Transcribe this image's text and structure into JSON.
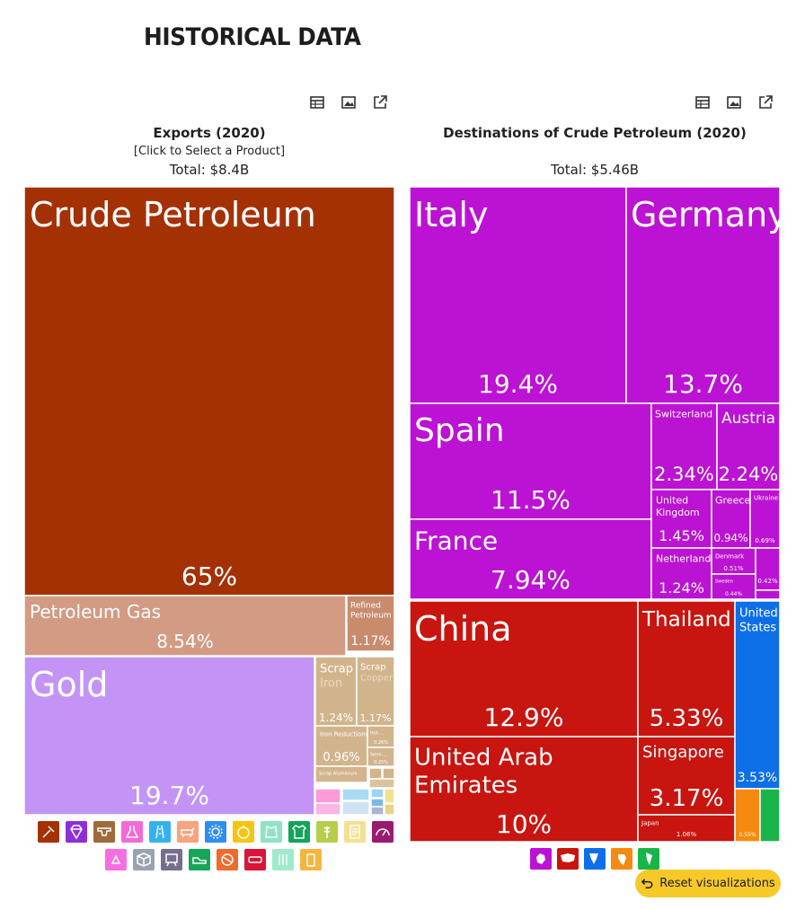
{
  "page": {
    "heading": "HISTORICAL DATA"
  },
  "left": {
    "title": "Exports (2020)",
    "subtitle": "[Click to Select a Product]",
    "total": "Total: $8.4B"
  },
  "right": {
    "title": "Destinations of Crude Petroleum (2020)",
    "total": "Total: $5.46B"
  },
  "toolbar": {
    "table": "table-icon",
    "image": "image-icon",
    "share": "share-icon"
  },
  "reset": {
    "label": "Reset visualizations"
  },
  "colors": {
    "crude": "#a43104",
    "gas": "#d39b83",
    "refined": "#c98b6e",
    "gold": "#c394f6",
    "metals": "#d2b48c",
    "europe": "#bc12d3",
    "asia": "#c8150f",
    "namerica": "#0c6fe8",
    "africa": "#f68a0e",
    "samerica": "#1ab54a"
  },
  "chart_data": [
    {
      "type": "treemap",
      "title": "Exports (2020)",
      "total": "$8.4B",
      "items": [
        {
          "label": "Crude Petroleum",
          "value": 65,
          "share": "65%",
          "group": "mineral"
        },
        {
          "label": "Petroleum Gas",
          "value": 8.54,
          "share": "8.54%",
          "group": "mineral"
        },
        {
          "label": "Refined Petroleum",
          "value": 1.17,
          "share": "1.17%",
          "group": "mineral"
        },
        {
          "label": "Gold",
          "value": 19.7,
          "share": "19.7%",
          "group": "precious"
        },
        {
          "label": "Scrap Iron",
          "value": 1.24,
          "share": "1.24%",
          "group": "metals"
        },
        {
          "label": "Scrap Copper",
          "value": 1.17,
          "share": "1.17%",
          "group": "metals"
        },
        {
          "label": "Iron Reductions",
          "value": 0.96,
          "share": "0.96%",
          "group": "metals"
        },
        {
          "label": "Hot-...",
          "value": 0.26,
          "share": "0.26%",
          "group": "metals"
        },
        {
          "label": "Semi-...",
          "value": 0.25,
          "share": "0.25%",
          "group": "metals"
        },
        {
          "label": "Scrap Aluminium",
          "value": 0.2,
          "share": "",
          "group": "metals"
        }
      ]
    },
    {
      "type": "treemap",
      "title": "Destinations of Crude Petroleum (2020)",
      "total": "$5.46B",
      "items": [
        {
          "label": "Italy",
          "value": 19.4,
          "share": "19.4%",
          "region": "europe"
        },
        {
          "label": "Germany",
          "value": 13.7,
          "share": "13.7%",
          "region": "europe"
        },
        {
          "label": "Spain",
          "value": 11.5,
          "share": "11.5%",
          "region": "europe"
        },
        {
          "label": "France",
          "value": 7.94,
          "share": "7.94%",
          "region": "europe"
        },
        {
          "label": "Switzerland",
          "value": 2.34,
          "share": "2.34%",
          "region": "europe"
        },
        {
          "label": "Austria",
          "value": 2.24,
          "share": "2.24%",
          "region": "europe"
        },
        {
          "label": "United Kingdom",
          "value": 1.45,
          "share": "1.45%",
          "region": "europe"
        },
        {
          "label": "Greece",
          "value": 0.94,
          "share": "0.94%",
          "region": "europe"
        },
        {
          "label": "Ukraine",
          "value": 0.69,
          "share": "0.69%",
          "region": "europe"
        },
        {
          "label": "Netherlands",
          "value": 1.24,
          "share": "1.24%",
          "region": "europe"
        },
        {
          "label": "Denmark",
          "value": 0.51,
          "share": "0.51%",
          "region": "europe"
        },
        {
          "label": "Sweden",
          "value": 0.44,
          "share": "0.44%",
          "region": "europe"
        },
        {
          "label": "",
          "value": 0.42,
          "share": "0.42%",
          "region": "europe"
        },
        {
          "label": "China",
          "value": 12.9,
          "share": "12.9%",
          "region": "asia"
        },
        {
          "label": "Thailand",
          "value": 5.33,
          "share": "5.33%",
          "region": "asia"
        },
        {
          "label": "United Arab Emirates",
          "value": 10,
          "share": "10%",
          "region": "asia"
        },
        {
          "label": "Singapore",
          "value": 3.17,
          "share": "3.17%",
          "region": "asia"
        },
        {
          "label": "Japan",
          "value": 1.06,
          "share": "1.06%",
          "region": "asia"
        },
        {
          "label": "United States",
          "value": 3.53,
          "share": "3.53%",
          "region": "namerica"
        },
        {
          "label": "",
          "value": 0.55,
          "share": "0.55%",
          "region": "africa"
        },
        {
          "label": "",
          "value": 0.5,
          "share": "",
          "region": "samerica"
        }
      ]
    }
  ]
}
